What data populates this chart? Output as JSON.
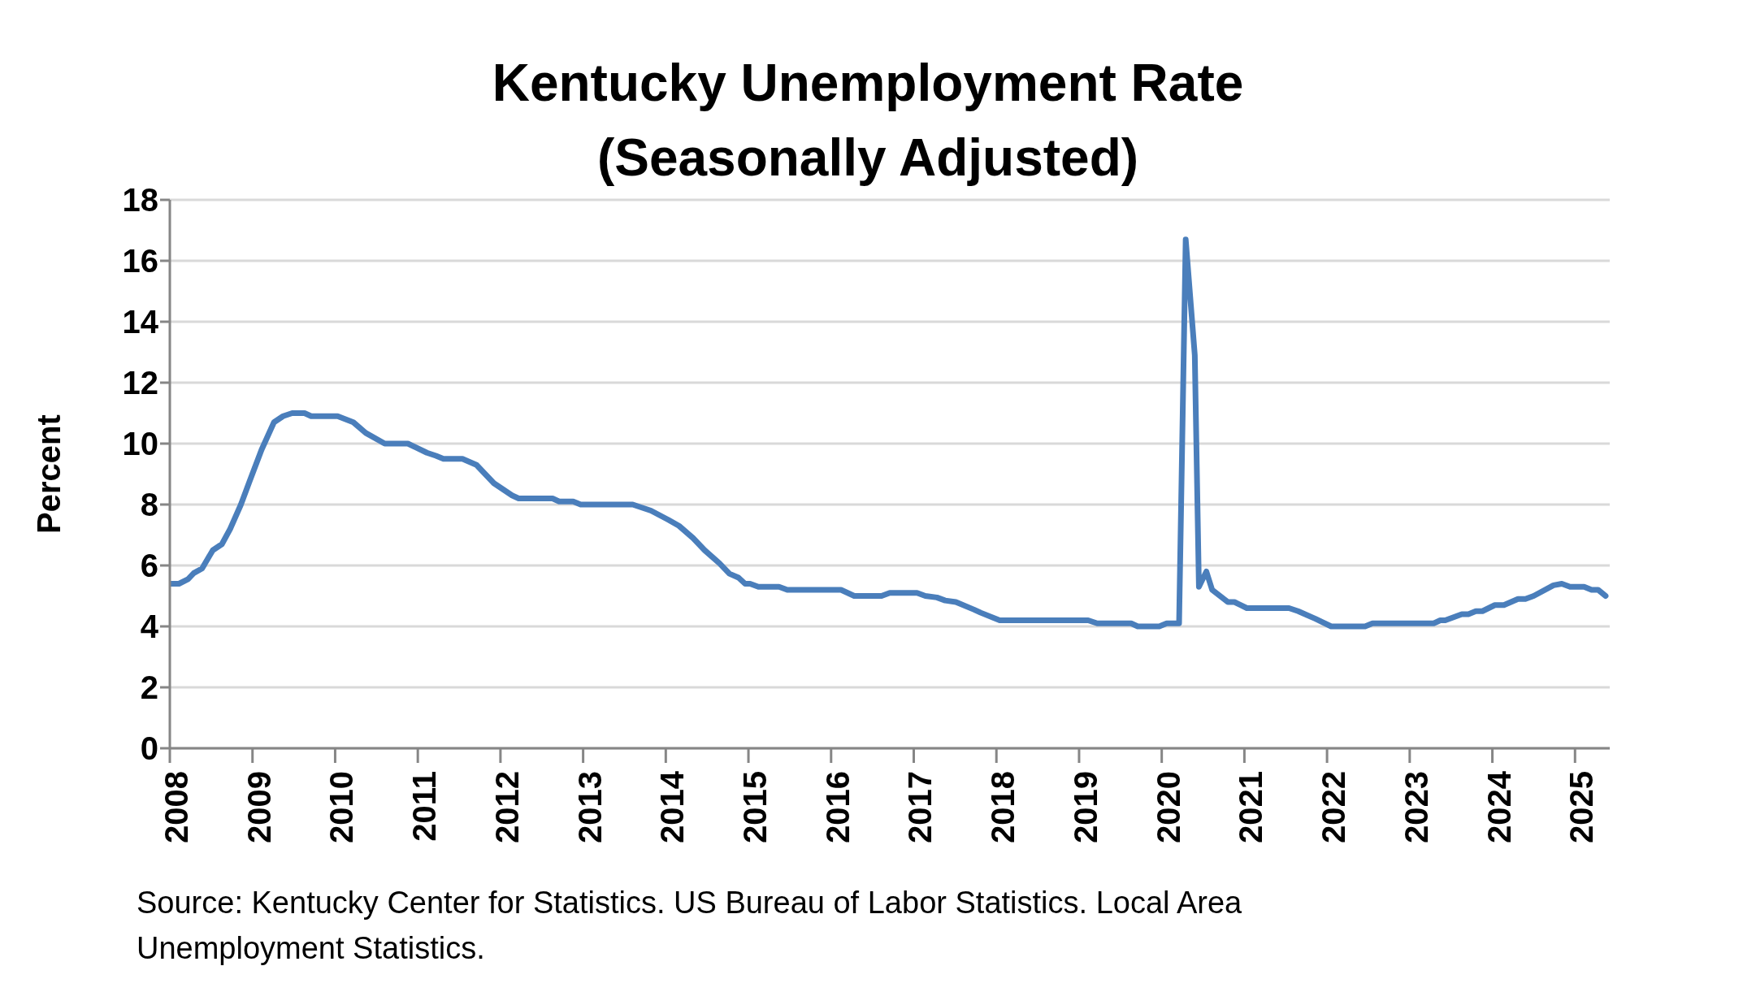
{
  "chart_data": {
    "type": "line",
    "title": "Kentucky Unemployment Rate\n(Seasonally Adjusted)",
    "ylabel": "Percent",
    "annotations": [
      "Source: Kentucky Center for Statistics. US Bureau of Labor Statistics. Local Area Unemployment Statistics."
    ],
    "x": [
      2008.0,
      2008.11,
      2008.22,
      2008.29,
      2008.39,
      2008.52,
      2008.63,
      2008.73,
      2008.86,
      2008.97,
      2009.11,
      2009.26,
      2009.37,
      2009.48,
      2009.63,
      2009.71,
      2010.03,
      2010.22,
      2010.37,
      2010.6,
      2010.88,
      2011.11,
      2011.22,
      2011.31,
      2011.54,
      2011.71,
      2011.92,
      2012.03,
      2012.14,
      2012.22,
      2012.63,
      2012.71,
      2012.88,
      2012.97,
      2013.6,
      2013.82,
      2014.03,
      2014.16,
      2014.33,
      2014.47,
      2014.65,
      2014.77,
      2014.88,
      2014.96,
      2015.02,
      2015.12,
      2015.37,
      2015.47,
      2016.12,
      2016.28,
      2016.61,
      2016.71,
      2017.04,
      2017.14,
      2017.28,
      2017.38,
      2017.51,
      2017.73,
      2017.81,
      2018.04,
      2019.11,
      2019.22,
      2019.63,
      2019.71,
      2019.97,
      2020.06,
      2020.21,
      2020.29,
      2020.4,
      2020.45,
      2020.54,
      2020.61,
      2020.8,
      2020.88,
      2021.03,
      2021.54,
      2021.65,
      2021.86,
      2022.05,
      2022.46,
      2022.55,
      2023.29,
      2023.37,
      2023.43,
      2023.63,
      2023.71,
      2023.8,
      2023.88,
      2024.03,
      2024.14,
      2024.31,
      2024.4,
      2024.5,
      2024.74,
      2024.84,
      2024.94,
      2025.11,
      2025.2,
      2025.28,
      2025.37
    ],
    "values": [
      5.4,
      5.4,
      5.55,
      5.75,
      5.9,
      6.5,
      6.7,
      7.2,
      8.0,
      8.8,
      9.8,
      10.7,
      10.9,
      11.0,
      11.0,
      10.9,
      10.9,
      10.7,
      10.35,
      10.0,
      10.0,
      9.7,
      9.6,
      9.5,
      9.5,
      9.3,
      8.7,
      8.5,
      8.3,
      8.2,
      8.2,
      8.1,
      8.1,
      8.0,
      8.0,
      7.8,
      7.5,
      7.3,
      6.9,
      6.5,
      6.07,
      5.73,
      5.6,
      5.4,
      5.4,
      5.3,
      5.3,
      5.2,
      5.2,
      5.0,
      5.0,
      5.1,
      5.1,
      5.0,
      4.95,
      4.85,
      4.8,
      4.55,
      4.45,
      4.2,
      4.2,
      4.1,
      4.1,
      4.0,
      4.0,
      4.1,
      4.1,
      16.7,
      12.9,
      5.3,
      5.8,
      5.2,
      4.8,
      4.8,
      4.6,
      4.6,
      4.5,
      4.25,
      4.0,
      4.0,
      4.1,
      4.1,
      4.2,
      4.2,
      4.4,
      4.4,
      4.5,
      4.5,
      4.7,
      4.7,
      4.9,
      4.9,
      5.0,
      5.35,
      5.4,
      5.3,
      5.3,
      5.2,
      5.2,
      5.0
    ],
    "color": "#4a7ebb",
    "xlim": [
      2008,
      2025.42
    ],
    "xticks": [
      2008,
      2009,
      2010,
      2011,
      2012,
      2013,
      2014,
      2015,
      2016,
      2017,
      2018,
      2019,
      2020,
      2021,
      2022,
      2023,
      2024,
      2025
    ],
    "ylim": [
      0,
      18
    ],
    "yticks": [
      0,
      2,
      4,
      6,
      8,
      10,
      12,
      14,
      16,
      18
    ],
    "grid": "y"
  }
}
